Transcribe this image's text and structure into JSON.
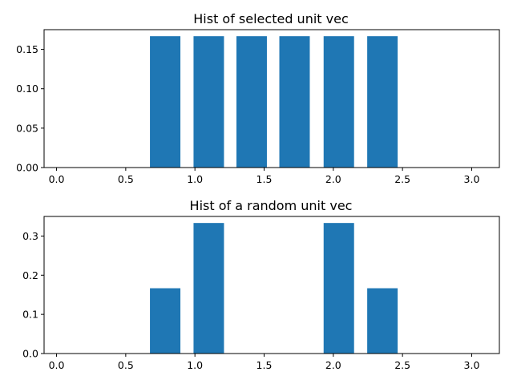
{
  "chart_data": [
    {
      "type": "bar",
      "title": "Hist of selected unit vec",
      "xlabel": "",
      "ylabel": "",
      "xlim": [
        -0.09,
        3.2
      ],
      "ylim": [
        0,
        0.175
      ],
      "bar_width": 0.22,
      "bar_color": "#1f77b4",
      "x_ticks": [
        "0.0",
        "0.5",
        "1.0",
        "1.5",
        "2.0",
        "2.5",
        "3.0"
      ],
      "y_ticks": [
        "0.00",
        "0.05",
        "0.10",
        "0.15"
      ],
      "x": [
        0.785,
        1.1,
        1.41,
        1.72,
        2.04,
        2.355
      ],
      "values": [
        0.1667,
        0.1667,
        0.1667,
        0.1667,
        0.1667,
        0.1667
      ]
    },
    {
      "type": "bar",
      "title": "Hist of a random unit vec",
      "xlabel": "",
      "ylabel": "",
      "xlim": [
        -0.09,
        3.2
      ],
      "ylim": [
        0,
        0.35
      ],
      "bar_width": 0.22,
      "bar_color": "#1f77b4",
      "x_ticks": [
        "0.0",
        "0.5",
        "1.0",
        "1.5",
        "2.0",
        "2.5",
        "3.0"
      ],
      "y_ticks": [
        "0.0",
        "0.1",
        "0.2",
        "0.3"
      ],
      "x": [
        0.785,
        1.1,
        2.04,
        2.355
      ],
      "values": [
        0.1667,
        0.3333,
        0.3333,
        0.1667
      ]
    }
  ]
}
